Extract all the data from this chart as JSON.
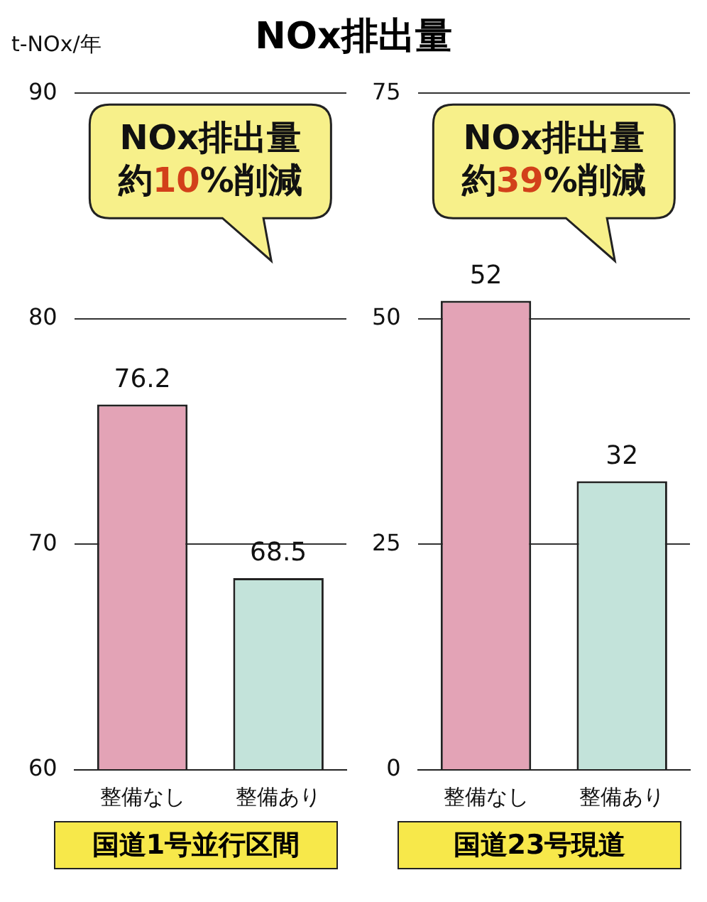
{
  "chart_data": [
    {
      "type": "bar",
      "title": "NOx排出量",
      "ylabel": "t-NOx/年",
      "xlabel": "国道1号並行区間",
      "categories": [
        "整備なし",
        "整備あり"
      ],
      "values": [
        76.2,
        68.5
      ],
      "colors": [
        "#e3a3b6",
        "#c3e3da"
      ],
      "ylim": [
        60,
        90
      ],
      "yticks": [
        60,
        70,
        80,
        90
      ],
      "grid": "y",
      "data_labels": true,
      "annotations": [
        "NOx排出量約10%削減"
      ]
    },
    {
      "type": "bar",
      "xlabel": "国道23号現道",
      "categories": [
        "整備なし",
        "整備あり"
      ],
      "values": [
        52,
        32
      ],
      "colors": [
        "#e3a3b6",
        "#c3e3da"
      ],
      "ylim": [
        0,
        75
      ],
      "yticks": [
        0,
        25,
        50,
        75
      ],
      "grid": "y",
      "data_labels": true,
      "annotations": [
        "NOx排出量約39%削減"
      ]
    }
  ]
}
